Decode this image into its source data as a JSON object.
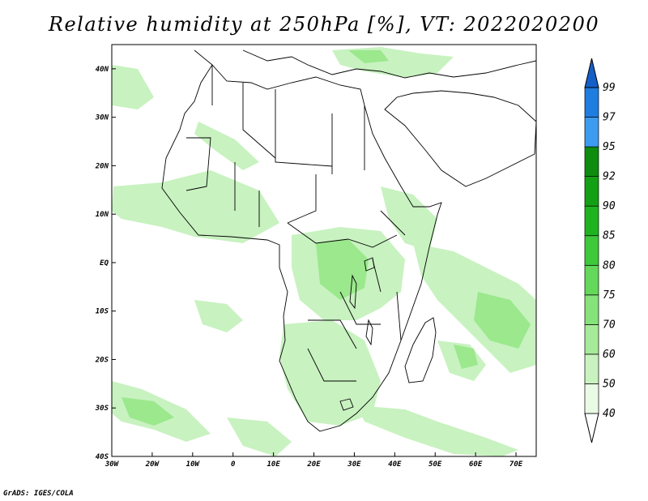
{
  "title": "Relative humidity at 250hPa [%], VT: 2022020200",
  "credit": "GrADS: IGES/COLA",
  "map": {
    "lon_range": [
      -30,
      75
    ],
    "lat_range": [
      -40,
      45
    ],
    "lon_ticks": [
      {
        "lon": -30,
        "label": "30W"
      },
      {
        "lon": -20,
        "label": "20W"
      },
      {
        "lon": -10,
        "label": "10W"
      },
      {
        "lon": 0,
        "label": "0"
      },
      {
        "lon": 10,
        "label": "10E"
      },
      {
        "lon": 20,
        "label": "20E"
      },
      {
        "lon": 30,
        "label": "30E"
      },
      {
        "lon": 40,
        "label": "40E"
      },
      {
        "lon": 50,
        "label": "50E"
      },
      {
        "lon": 60,
        "label": "60E"
      },
      {
        "lon": 70,
        "label": "70E"
      }
    ],
    "lat_ticks": [
      {
        "lat": 40,
        "label": "40N"
      },
      {
        "lat": 30,
        "label": "30N"
      },
      {
        "lat": 20,
        "label": "20N"
      },
      {
        "lat": 10,
        "label": "10N"
      },
      {
        "lat": 0,
        "label": "EQ"
      },
      {
        "lat": -10,
        "label": "10S"
      },
      {
        "lat": -20,
        "label": "20S"
      },
      {
        "lat": -30,
        "label": "30S"
      },
      {
        "lat": -40,
        "label": "40S"
      }
    ],
    "colors": {
      "light": "#c8f2c0",
      "medium": "#9be88d",
      "coast": "#000000"
    }
  },
  "colorbar": {
    "levels": [
      "40",
      "50",
      "60",
      "70",
      "75",
      "80",
      "85",
      "90",
      "92",
      "95",
      "97",
      "99"
    ],
    "colors": [
      "#e9fbe5",
      "#c9f2c0",
      "#a6eb99",
      "#86e27a",
      "#64d85a",
      "#3ec93a",
      "#1fb41f",
      "#14a014",
      "#0e8c0e",
      "#3d9bf0",
      "#1f7de0",
      "#1560c8"
    ],
    "under_color": "#ffffff",
    "over_color": "#1560c8"
  }
}
